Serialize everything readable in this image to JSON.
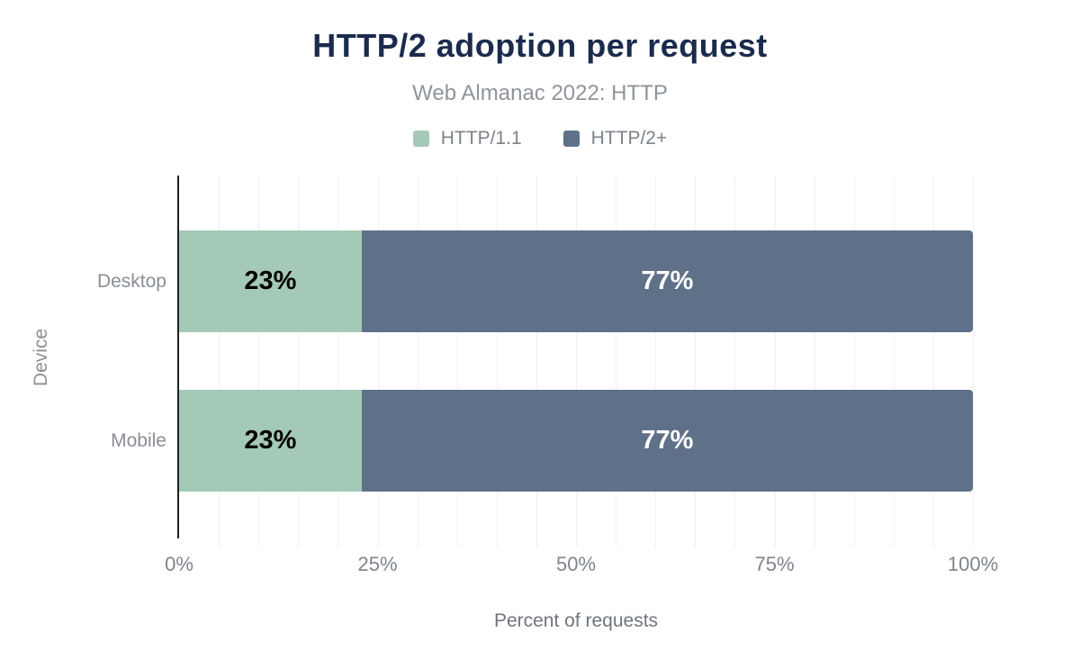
{
  "chart_data": {
    "type": "bar",
    "orientation": "horizontal",
    "stacked": true,
    "title": "HTTP/2 adoption per request",
    "subtitle": "Web Almanac 2022: HTTP",
    "categories": [
      "Desktop",
      "Mobile"
    ],
    "series": [
      {
        "name": "HTTP/1.1",
        "color": "#a4c9b6",
        "label_color": "#000000",
        "values": [
          23,
          23
        ],
        "labels": [
          "23%",
          "23%"
        ]
      },
      {
        "name": "HTTP/2+",
        "color": "#5f7189",
        "label_color": "#ffffff",
        "values": [
          77,
          77
        ],
        "labels": [
          "77%",
          "77%"
        ]
      }
    ],
    "xlabel": "Percent of requests",
    "ylabel": "Device",
    "xlim": [
      0,
      100
    ],
    "xticks": [
      "0%",
      "25%",
      "50%",
      "75%",
      "100%"
    ],
    "grid_step_percent": 5,
    "grid": "vertical",
    "legend_position": "top"
  },
  "colors": {
    "title": "#1b2b4d",
    "subtitle_text": "#8f949b",
    "axis_line": "#202124",
    "gridline": "#f1f1f1",
    "tick_text": "#7e848b",
    "series_http11": "#a4c9b6",
    "series_http2plus": "#5f7189"
  }
}
